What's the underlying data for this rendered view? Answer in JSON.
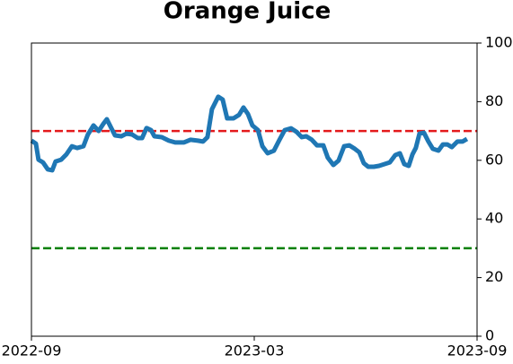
{
  "chart_data": {
    "type": "line",
    "title": "Orange Juice",
    "x": [
      0,
      0.12,
      0.19,
      0.31,
      0.44,
      0.56,
      0.65,
      0.8,
      0.94,
      1.09,
      1.23,
      1.4,
      1.52,
      1.67,
      1.81,
      1.94,
      2.03,
      2.15,
      2.25,
      2.42,
      2.56,
      2.71,
      2.86,
      2.98,
      3.1,
      3.22,
      3.31,
      3.51,
      3.7,
      3.87,
      4.11,
      4.28,
      4.48,
      4.62,
      4.74,
      4.86,
      5.03,
      5.15,
      5.27,
      5.44,
      5.59,
      5.71,
      5.83,
      5.95,
      6.1,
      6.22,
      6.36,
      6.53,
      6.68,
      6.82,
      6.99,
      7.14,
      7.28,
      7.4,
      7.55,
      7.69,
      7.86,
      7.98,
      8.13,
      8.27,
      8.42,
      8.56,
      8.71,
      8.83,
      8.95,
      9.07,
      9.22,
      9.36,
      9.51,
      9.65,
      9.8,
      9.92,
      10.04,
      10.16,
      10.26,
      10.35,
      10.45,
      10.57,
      10.69,
      10.81,
      10.96,
      11.08,
      11.2,
      11.32,
      11.47,
      11.61,
      11.73
    ],
    "series": [
      {
        "color": "#1f77b4",
        "values": [
          66.7,
          65.7,
          60.2,
          59.3,
          56.9,
          56.6,
          59.6,
          60.2,
          62,
          64.8,
          64.2,
          64.8,
          68.8,
          71.9,
          70,
          72.5,
          74,
          71,
          68.5,
          68.2,
          69.1,
          68.8,
          67.6,
          67.6,
          71,
          70.3,
          68.2,
          67.9,
          66.7,
          66.1,
          66.1,
          67,
          66.7,
          66.4,
          67.9,
          77.4,
          81.7,
          80.7,
          74.3,
          74.3,
          75.5,
          78,
          75.8,
          71.9,
          70.3,
          64.8,
          62.4,
          63.3,
          67,
          70.3,
          70.9,
          69.7,
          67.9,
          68.2,
          67,
          65.1,
          65.1,
          60.9,
          58.4,
          59.9,
          64.8,
          65.1,
          63.9,
          62.7,
          59,
          57.8,
          57.8,
          58.1,
          58.7,
          59.3,
          61.8,
          62.4,
          58.7,
          58.1,
          62,
          64.2,
          69.1,
          69.4,
          66.4,
          63.9,
          63.3,
          65.4,
          65.4,
          64.5,
          66.4,
          66.4,
          67.3
        ]
      }
    ],
    "hlines": [
      {
        "value": 70,
        "color": "#e41a1c"
      },
      {
        "value": 30,
        "color": "#008000"
      }
    ],
    "xlim": [
      0,
      12
    ],
    "xticks": [
      {
        "value": 0,
        "label": "2022-09"
      },
      {
        "value": 6,
        "label": "2023-03"
      },
      {
        "value": 12,
        "label": "2023-09"
      }
    ],
    "ylim": [
      0,
      100
    ],
    "yticks": [
      0,
      20,
      40,
      60,
      80,
      100
    ]
  }
}
